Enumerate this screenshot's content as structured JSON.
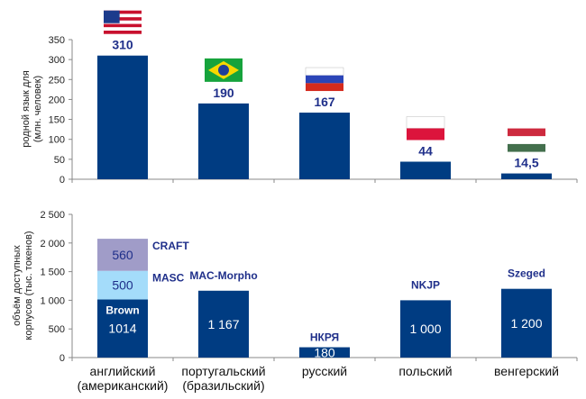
{
  "chart_data": [
    {
      "type": "bar",
      "ylabel_lines": [
        "родной язык для",
        "(млн. человек)"
      ],
      "ylim": [
        0,
        350
      ],
      "yticks": [
        0,
        50,
        100,
        150,
        200,
        250,
        300,
        350
      ],
      "categories": [
        "английский",
        "португальский",
        "русский",
        "польский",
        "венгерский"
      ],
      "values": [
        310,
        190,
        167,
        44,
        14.5
      ],
      "data_labels": [
        "310",
        "190",
        "167",
        "44",
        "14,5"
      ],
      "flags": [
        "us-flag",
        "brazil-flag",
        "russia-flag",
        "poland-flag",
        "hungary-flag"
      ],
      "colors": {
        "bar": "#003c82"
      }
    },
    {
      "type": "bar",
      "stacked": true,
      "ylabel_lines": [
        "объём доступных",
        "корпусов (тыс. токенов)"
      ],
      "ylim": [
        0,
        2500
      ],
      "yticks": [
        0,
        500,
        1000,
        1500,
        2000,
        2500
      ],
      "ytick_labels": [
        "0",
        "500",
        "1 000",
        "1 500",
        "2 000",
        "2 500"
      ],
      "categories": [
        [
          "английский",
          "(американский)"
        ],
        [
          "португальский",
          "(бразильский)"
        ],
        [
          "русский"
        ],
        [
          "польский"
        ],
        [
          "венгерский"
        ]
      ],
      "series": [
        {
          "name": "base",
          "values": [
            1014,
            1167,
            180,
            1000,
            1200
          ],
          "data_labels": [
            "1014",
            "1 167",
            "180",
            "1 000",
            "1 200"
          ],
          "corpus_names": [
            "Brown",
            "MAC-Morpho",
            "НКРЯ",
            "NKJP",
            "Szeged"
          ]
        },
        {
          "name": "MASC",
          "values": [
            500,
            0,
            0,
            0,
            0
          ],
          "data_labels": [
            "500",
            "",
            "",
            "",
            ""
          ]
        },
        {
          "name": "CRAFT",
          "values": [
            560,
            0,
            0,
            0,
            0
          ],
          "data_labels": [
            "560",
            "",
            "",
            "",
            ""
          ]
        }
      ],
      "colors": {
        "base": "#003c82",
        "MASC": "#a4dcfa",
        "CRAFT": "#a09cc8"
      }
    }
  ]
}
